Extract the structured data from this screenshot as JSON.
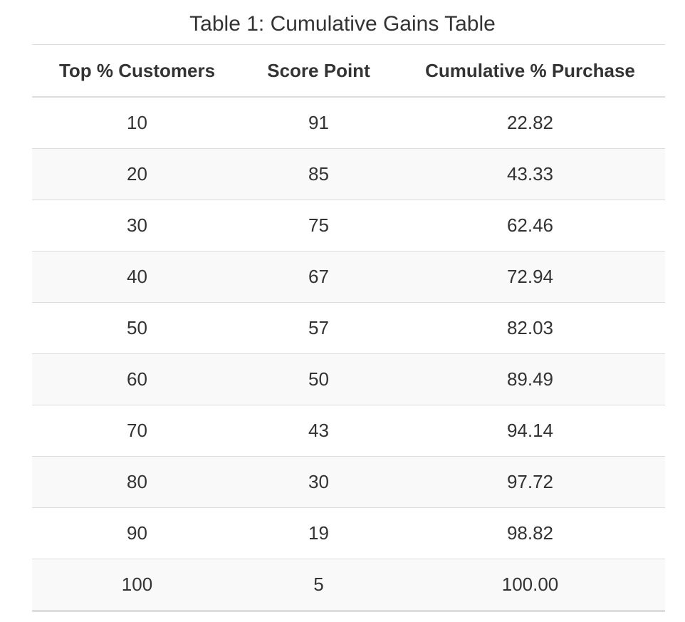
{
  "caption": "Table 1: Cumulative Gains Table",
  "table": {
    "headers": [
      "Top % Customers",
      "Score Point",
      "Cumulative % Purchase"
    ],
    "rows": [
      [
        "10",
        "91",
        "22.82"
      ],
      [
        "20",
        "85",
        "43.33"
      ],
      [
        "30",
        "75",
        "62.46"
      ],
      [
        "40",
        "67",
        "72.94"
      ],
      [
        "50",
        "57",
        "82.03"
      ],
      [
        "60",
        "50",
        "89.49"
      ],
      [
        "70",
        "43",
        "94.14"
      ],
      [
        "80",
        "30",
        "97.72"
      ],
      [
        "90",
        "19",
        "98.82"
      ],
      [
        "100",
        "5",
        "100.00"
      ]
    ]
  },
  "chart_data": {
    "type": "table",
    "title": "Table 1: Cumulative Gains Table",
    "columns": [
      "Top % Customers",
      "Score Point",
      "Cumulative % Purchase"
    ],
    "x": [
      10,
      20,
      30,
      40,
      50,
      60,
      70,
      80,
      90,
      100
    ],
    "series": [
      {
        "name": "Score Point",
        "values": [
          91,
          85,
          75,
          67,
          57,
          50,
          43,
          30,
          19,
          5
        ]
      },
      {
        "name": "Cumulative % Purchase",
        "values": [
          22.82,
          43.33,
          62.46,
          72.94,
          82.03,
          89.49,
          94.14,
          97.72,
          98.82,
          100.0
        ]
      }
    ]
  }
}
